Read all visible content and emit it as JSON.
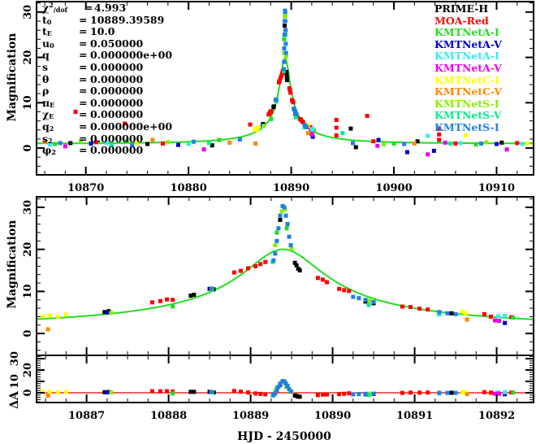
{
  "chart_data": {
    "type": "scatter",
    "title": "",
    "xlabel": "HJD - 2450000",
    "ylabel": "Magnification",
    "residual_ylabel": "ΔA",
    "panels": {
      "top": {
        "xlim": [
          10865.2,
          10913.6
        ],
        "ylim": [
          -5.9,
          32.3
        ],
        "xticks": [
          "10870",
          "10880",
          "10890",
          "10900",
          "10910"
        ],
        "yticks": [
          "0",
          "10",
          "20",
          "30"
        ]
      },
      "middle": {
        "xlim": [
          10886.39,
          10892.45
        ],
        "ylim": [
          -5.2,
          32.5
        ],
        "yticks": [
          "0",
          "10",
          "20",
          "30"
        ]
      },
      "residual": {
        "xlim": [
          10886.39,
          10892.45
        ],
        "ylim": [
          -8.6,
          32.9
        ],
        "xticks": [
          "10887",
          "10888",
          "10889",
          "10890",
          "10891",
          "10892"
        ],
        "yticks": [
          "0",
          "10",
          "20",
          "30"
        ]
      }
    },
    "model": {
      "type": "point-lens",
      "t0": 10889.39589,
      "tE": 10.0,
      "u0": 0.05,
      "color": "#22dd22"
    },
    "residual_line_color": "#dd0000",
    "parameters": [
      {
        "sym": "χ",
        "sup": "2",
        "sub": "/dof",
        "eq": "=",
        "val": "4.993"
      },
      {
        "sym": "t",
        "sub": "0",
        "eq": "=",
        "val": "10889.39589"
      },
      {
        "sym": "t",
        "sub": "E",
        "eq": "=",
        "val": "10.0"
      },
      {
        "sym": "u",
        "sub": "0",
        "eq": "=",
        "val": "0.050000"
      },
      {
        "sym": "q",
        "sub": "",
        "eq": "=",
        "val": "0.000000e+00"
      },
      {
        "sym": "s",
        "sub": "",
        "eq": "=",
        "val": "0.000000"
      },
      {
        "sym": "θ",
        "sub": "",
        "eq": "=",
        "val": "0.000000"
      },
      {
        "sym": "ρ",
        "sub": "",
        "eq": "=",
        "val": "0.000000"
      },
      {
        "sym": "π",
        "sub": "E",
        "eq": "=",
        "val": "0.000000"
      },
      {
        "sym": "χ",
        "sub": "E",
        "eq": "=",
        "val": "0.000000"
      },
      {
        "sym": "q",
        "sub": "2",
        "eq": "=",
        "val": "0.000000e+00"
      },
      {
        "sym": "s",
        "sub": "2",
        "eq": "=",
        "val": "0.000000"
      },
      {
        "sym": "φ",
        "sub": "2",
        "eq": "=",
        "val": "0.000000"
      }
    ],
    "series": [
      {
        "name": "PRIME-H",
        "color": "#000000",
        "points": [
          [
            10868.5,
            1.1
          ],
          [
            10876,
            0.9
          ],
          [
            10882.3,
            0.6
          ],
          [
            10887.22,
            5.1
          ],
          [
            10887.27,
            5.3
          ],
          [
            10888.27,
            9.0
          ],
          [
            10888.31,
            9.2
          ],
          [
            10888.5,
            10.6
          ],
          [
            10888.55,
            10.5
          ],
          [
            10889.36,
            27
          ],
          [
            10889.45,
            26
          ],
          [
            10889.54,
            16.8
          ],
          [
            10889.56,
            16.2
          ],
          [
            10889.58,
            15.4
          ],
          [
            10889.6,
            15.0
          ],
          [
            10890.4,
            7.6
          ],
          [
            10890.5,
            7.2
          ],
          [
            10891.45,
            4.8
          ],
          [
            10895.8,
            4.3
          ],
          [
            10896.3,
            0.2
          ],
          [
            10902.3,
            1.5
          ],
          [
            10910.5,
            1.2
          ]
        ]
      },
      {
        "name": "MOA-Red",
        "color": "#ff0000",
        "points": [
          [
            10869.0,
            8.0
          ],
          [
            10873.8,
            5.4
          ],
          [
            10871,
            1.3
          ],
          [
            10877.5,
            1.0
          ],
          [
            10886.0,
            5.2
          ],
          [
            10887.8,
            7.4
          ],
          [
            10887.9,
            7.7
          ],
          [
            10887.98,
            8.1
          ],
          [
            10888.05,
            8.0
          ],
          [
            10888.8,
            14.5
          ],
          [
            10888.88,
            14.9
          ],
          [
            10888.97,
            15.5
          ],
          [
            10889.06,
            16.0
          ],
          [
            10889.12,
            16.5
          ],
          [
            10889.18,
            17.0
          ],
          [
            10889.82,
            13.2
          ],
          [
            10889.88,
            12.8
          ],
          [
            10889.93,
            12.2
          ],
          [
            10890.08,
            10.6
          ],
          [
            10890.14,
            10.3
          ],
          [
            10890.2,
            10.1
          ],
          [
            10890.85,
            6.4
          ],
          [
            10890.95,
            6.3
          ],
          [
            10891.06,
            5.9
          ],
          [
            10891.16,
            5.7
          ],
          [
            10891.85,
            4.6
          ],
          [
            10891.93,
            4.0
          ],
          [
            10892.18,
            3.9
          ],
          [
            10894.4,
            6.2
          ],
          [
            10894.4,
            4.5
          ],
          [
            10894.4,
            2.8
          ],
          [
            10897.4,
            7.1
          ],
          [
            10898.0,
            1.5
          ],
          [
            10904.4,
            4.3
          ],
          [
            10904.4,
            3.0
          ],
          [
            10904.4,
            1.8
          ],
          [
            10906,
            1.0
          ],
          [
            10912,
            1.1
          ]
        ]
      },
      {
        "name": "KMTNetA-I",
        "color": "#22dd22",
        "points": [
          [
            10867,
            0.9
          ],
          [
            10874,
            1.5
          ],
          [
            10883,
            1.8
          ],
          [
            10888.05,
            6.4
          ],
          [
            10889.32,
            24
          ],
          [
            10889.44,
            25
          ],
          [
            10892.2,
            3.8
          ],
          [
            10900,
            1.0
          ],
          [
            10908,
            0.8
          ]
        ]
      },
      {
        "name": "KMTNetA-V",
        "color": "#0000cc",
        "points": [
          [
            10870.5,
            1.0
          ],
          [
            10879,
            0.7
          ],
          [
            10887.25,
            5.0
          ],
          [
            10898.5,
            1.8
          ],
          [
            10901.3,
            -0.9
          ],
          [
            10903.9,
            -0.6
          ],
          [
            10892.1,
            2.5
          ],
          [
            10910,
            0.9
          ]
        ]
      },
      {
        "name": "KMTNetA-I",
        "color": "#33eeee",
        "points": [
          [
            10866.5,
            0.8
          ],
          [
            10872,
            1.2
          ],
          [
            10880,
            0.9
          ],
          [
            10891.3,
            5.0
          ],
          [
            10892.02,
            4.1
          ],
          [
            10892.1,
            4.2
          ],
          [
            10903.3,
            2.7
          ],
          [
            10906.5,
            1.1
          ],
          [
            10912.5,
            0.9
          ]
        ]
      },
      {
        "name": "KMTNetA-V",
        "color": "#ee00ee",
        "points": [
          [
            10868,
            0.4
          ],
          [
            10881.5,
            -0.3
          ],
          [
            10891.98,
            3.1
          ],
          [
            10892.03,
            3.0
          ],
          [
            10898.4,
            0.5
          ],
          [
            10903.3,
            -1.4
          ],
          [
            10905,
            1.2
          ],
          [
            10911,
            -0.3
          ]
        ]
      },
      {
        "name": "KMTNetC-I",
        "color": "#ffff00",
        "points": [
          [
            10886.47,
            4.1
          ],
          [
            10886.55,
            4.3
          ],
          [
            10886.65,
            4.0
          ],
          [
            10886.75,
            4.5
          ],
          [
            10891.58,
            5.2
          ],
          [
            10891.62,
            4.8
          ],
          [
            10875,
            1.1
          ],
          [
            10907,
            2.8
          ],
          [
            10913,
            1.0
          ]
        ]
      },
      {
        "name": "KMTNetC-V",
        "color": "#ff8800",
        "points": [
          [
            10886.53,
            1.0
          ],
          [
            10891.64,
            3.3
          ],
          [
            10866,
            1.4
          ],
          [
            10876.5,
            1.8
          ],
          [
            10884,
            1.2
          ],
          [
            10902,
            1.0
          ]
        ]
      },
      {
        "name": "KMTNetS-I",
        "color": "#88ee00",
        "points": [
          [
            10869.5,
            1.5
          ],
          [
            10878,
            1.3
          ],
          [
            10887.3,
            4.9
          ],
          [
            10889.3,
            21
          ],
          [
            10889.38,
            29
          ],
          [
            10889.42,
            29.5
          ],
          [
            10889.5,
            20.2
          ],
          [
            10890.45,
            7.8
          ],
          [
            10899,
            0.8
          ],
          [
            10909,
            1.3
          ]
        ]
      },
      {
        "name": "KMTNetS-V",
        "color": "#00ee88",
        "points": [
          [
            10872.5,
            0.7
          ],
          [
            10882,
            1.1
          ],
          [
            10888.53,
            10.4
          ],
          [
            10889.27,
            17
          ],
          [
            10890.44,
            6.8
          ],
          [
            10891.3,
            4.6
          ],
          [
            10895,
            3.3
          ],
          [
            10905.5,
            1.0
          ]
        ]
      },
      {
        "name": "KMTNetS-I",
        "color": "#1e7fe8",
        "points": [
          [
            10867.5,
            1.1
          ],
          [
            10874.5,
            0.6
          ],
          [
            10880.5,
            1.4
          ],
          [
            10885,
            1.9
          ],
          [
            10888.52,
            10.7
          ],
          [
            10889.28,
            17.4
          ],
          [
            10889.3,
            19
          ],
          [
            10889.32,
            22
          ],
          [
            10889.34,
            25
          ],
          [
            10889.36,
            28
          ],
          [
            10889.39,
            30.3
          ],
          [
            10889.41,
            30
          ],
          [
            10889.43,
            28
          ],
          [
            10889.45,
            26
          ],
          [
            10889.47,
            23
          ],
          [
            10889.49,
            21
          ],
          [
            10890.25,
            8.7
          ],
          [
            10890.32,
            8.4
          ],
          [
            10890.4,
            8.0
          ],
          [
            10890.5,
            7.5
          ],
          [
            10891.3,
            5.1
          ],
          [
            10891.4,
            4.8
          ],
          [
            10891.5,
            4.6
          ],
          [
            10896,
            1.1
          ],
          [
            10901,
            0.9
          ],
          [
            10908.5,
            1.0
          ]
        ]
      }
    ]
  }
}
